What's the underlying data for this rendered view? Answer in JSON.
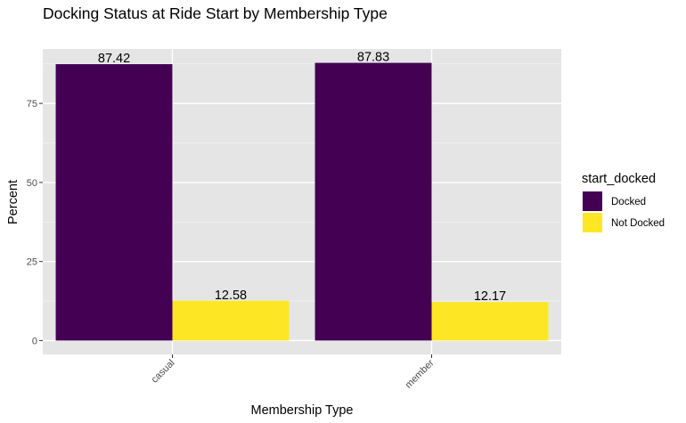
{
  "chart_data": {
    "type": "bar",
    "title": "Docking Status at Ride Start by Membership Type",
    "xlabel": "Membership Type",
    "ylabel": "Percent",
    "categories": [
      "casual",
      "member"
    ],
    "series": [
      {
        "name": "Docked",
        "color": "#440154",
        "values": [
          87.42,
          87.83
        ],
        "labels": [
          "87.42",
          "87.83"
        ]
      },
      {
        "name": "Not Docked",
        "color": "#FDE725",
        "values": [
          12.58,
          12.17
        ],
        "labels": [
          "12.58",
          "12.17"
        ]
      }
    ],
    "yticks": [
      0,
      25,
      50,
      75
    ],
    "ytick_labels": [
      "0",
      "25",
      "50",
      "75"
    ],
    "ylim": [
      -4.39,
      92.22
    ],
    "grid": true,
    "panel_background": "#E5E5E5",
    "legend": {
      "title": "start_docked",
      "placement": "right",
      "entries": [
        "Docked",
        "Not Docked"
      ]
    },
    "xtick_rotation_deg": 45
  }
}
